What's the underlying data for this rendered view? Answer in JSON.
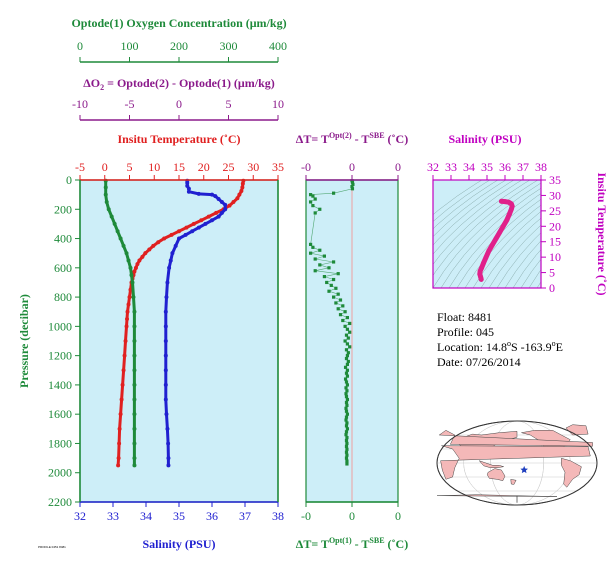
{
  "colors": {
    "oxygen": "#1e8a3a",
    "delta_o2": "#8b1a8b",
    "temperature": "#e02020",
    "salinity": "#2020d0",
    "pressure": "#1e8a3a",
    "dt": "#1e8a3a",
    "ts_salinity": "#c000c0",
    "ts_temp": "#c000c0",
    "ts_line": "#e0208a",
    "panel_bg": "#cdeef8",
    "map_land": "#f4b8b8",
    "map_ocean": "#ffffff",
    "float_marker": "#1f3fbf"
  },
  "chart_data": [
    {
      "type": "line",
      "name": "main-profile",
      "ylabel": "Pressure (decibar)",
      "y_ticks": [
        0,
        200,
        400,
        600,
        800,
        1000,
        1200,
        1400,
        1600,
        1800,
        2000,
        2200
      ],
      "ylim": [
        0,
        2200
      ],
      "x_axes": {
        "oxygen": {
          "label": "Optode(1) Oxygen Concentration (μm/kg)",
          "ticks": [
            0,
            100,
            200,
            300,
            400
          ],
          "range": [
            0,
            400
          ]
        },
        "delta_o2": {
          "label_prefix": "ΔO",
          "label_sub": "2",
          "label_rest": " = Optode(2) - Optode(1)   (μm/kg)",
          "ticks": [
            -10,
            -5,
            0,
            5,
            10
          ],
          "range": [
            -10,
            10
          ]
        },
        "temperature": {
          "label": "Insitu Temperature (˚C)",
          "ticks": [
            -5,
            0,
            5,
            10,
            15,
            20,
            25,
            30,
            35
          ],
          "range": [
            -5,
            35
          ]
        },
        "salinity": {
          "label": "Salinity (PSU)",
          "ticks": [
            32,
            33,
            34,
            35,
            36,
            37,
            38
          ],
          "range": [
            32,
            38
          ]
        }
      },
      "series": [
        {
          "name": "Temperature",
          "axis": "temperature",
          "points": [
            [
              28.0,
              5
            ],
            [
              27.9,
              25
            ],
            [
              27.8,
              50
            ],
            [
              27.6,
              75
            ],
            [
              27.2,
              100
            ],
            [
              26.8,
              125
            ],
            [
              26.0,
              150
            ],
            [
              25.2,
              175
            ],
            [
              24.0,
              200
            ],
            [
              22.5,
              225
            ],
            [
              21.0,
              250
            ],
            [
              19.5,
              275
            ],
            [
              18.0,
              300
            ],
            [
              16.5,
              325
            ],
            [
              15.0,
              350
            ],
            [
              13.5,
              375
            ],
            [
              12.0,
              400
            ],
            [
              10.8,
              425
            ],
            [
              9.8,
              450
            ],
            [
              9.0,
              475
            ],
            [
              8.2,
              500
            ],
            [
              7.6,
              525
            ],
            [
              7.0,
              550
            ],
            [
              6.6,
              575
            ],
            [
              6.3,
              600
            ],
            [
              6.0,
              625
            ],
            [
              5.8,
              650
            ],
            [
              5.6,
              675
            ],
            [
              5.4,
              700
            ],
            [
              5.2,
              750
            ],
            [
              5.0,
              800
            ],
            [
              4.8,
              850
            ],
            [
              4.6,
              900
            ],
            [
              4.5,
              950
            ],
            [
              4.4,
              1000
            ],
            [
              4.2,
              1100
            ],
            [
              4.0,
              1200
            ],
            [
              3.8,
              1300
            ],
            [
              3.6,
              1400
            ],
            [
              3.4,
              1500
            ],
            [
              3.2,
              1600
            ],
            [
              3.0,
              1700
            ],
            [
              2.9,
              1800
            ],
            [
              2.8,
              1900
            ],
            [
              2.7,
              1950
            ]
          ]
        },
        {
          "name": "Salinity",
          "axis": "salinity",
          "points": [
            [
              35.25,
              5
            ],
            [
              35.25,
              20
            ],
            [
              35.25,
              40
            ],
            [
              35.3,
              60
            ],
            [
              35.3,
              80
            ],
            [
              35.6,
              95
            ],
            [
              36.0,
              100
            ],
            [
              36.1,
              110
            ],
            [
              36.2,
              130
            ],
            [
              36.3,
              150
            ],
            [
              36.4,
              170
            ],
            [
              36.4,
              200
            ],
            [
              36.3,
              225
            ],
            [
              36.2,
              250
            ],
            [
              36.0,
              275
            ],
            [
              35.8,
              300
            ],
            [
              35.6,
              325
            ],
            [
              35.4,
              350
            ],
            [
              35.2,
              375
            ],
            [
              35.0,
              400
            ],
            [
              34.9,
              450
            ],
            [
              34.8,
              500
            ],
            [
              34.75,
              550
            ],
            [
              34.7,
              600
            ],
            [
              34.65,
              700
            ],
            [
              34.62,
              800
            ],
            [
              34.6,
              900
            ],
            [
              34.6,
              1000
            ],
            [
              34.6,
              1100
            ],
            [
              34.6,
              1200
            ],
            [
              34.6,
              1300
            ],
            [
              34.6,
              1400
            ],
            [
              34.6,
              1500
            ],
            [
              34.62,
              1600
            ],
            [
              34.65,
              1700
            ],
            [
              34.67,
              1800
            ],
            [
              34.68,
              1900
            ],
            [
              34.68,
              1950
            ]
          ]
        },
        {
          "name": "Oxygen",
          "axis": "oxygen",
          "points": [
            [
              52,
              5
            ],
            [
              52,
              50
            ],
            [
              52,
              100
            ],
            [
              54,
              150
            ],
            [
              58,
              200
            ],
            [
              64,
              250
            ],
            [
              70,
              300
            ],
            [
              76,
              350
            ],
            [
              82,
              400
            ],
            [
              88,
              450
            ],
            [
              94,
              500
            ],
            [
              98,
              550
            ],
            [
              102,
              600
            ],
            [
              104,
              650
            ],
            [
              106,
              700
            ],
            [
              108,
              800
            ],
            [
              110,
              900
            ],
            [
              110,
              1000
            ],
            [
              110,
              1100
            ],
            [
              110,
              1200
            ],
            [
              110,
              1300
            ],
            [
              110,
              1400
            ],
            [
              110,
              1500
            ],
            [
              110,
              1600
            ],
            [
              110,
              1700
            ],
            [
              110,
              1800
            ],
            [
              110,
              1900
            ],
            [
              110,
              1950
            ]
          ]
        }
      ]
    },
    {
      "type": "scatter",
      "name": "delta-t",
      "top_label_main": "ΔT= T",
      "top_label_sup1": "Opt(2)",
      "top_label_mid": " - T",
      "top_label_sup2": "SBE",
      "top_label_end": " (˚C)",
      "bottom_label_main": "ΔT= T",
      "bottom_label_sup1": "Opt(1)",
      "bottom_label_mid": " - T",
      "bottom_label_sup2": "SBE",
      "bottom_label_end": " (˚C)",
      "top_ticks": [
        "-0",
        "0",
        "0"
      ],
      "bottom_ticks": [
        "-0",
        "0",
        "0"
      ],
      "points": [
        [
          0.0,
          5
        ],
        [
          0.01,
          15
        ],
        [
          0.02,
          30
        ],
        [
          0.0,
          45
        ],
        [
          0.01,
          60
        ],
        [
          -0.4,
          90
        ],
        [
          -0.9,
          100
        ],
        [
          -0.85,
          110
        ],
        [
          -0.8,
          130
        ],
        [
          -0.9,
          150
        ],
        [
          -0.85,
          175
        ],
        [
          -0.7,
          200
        ],
        [
          -0.8,
          225
        ],
        [
          -0.9,
          440
        ],
        [
          -0.85,
          460
        ],
        [
          -0.7,
          480
        ],
        [
          -0.9,
          500
        ],
        [
          -0.6,
          520
        ],
        [
          -0.8,
          540
        ],
        [
          -0.4,
          560
        ],
        [
          -0.7,
          580
        ],
        [
          -0.5,
          600
        ],
        [
          -0.8,
          620
        ],
        [
          -0.3,
          640
        ],
        [
          -0.6,
          660
        ],
        [
          -0.4,
          680
        ],
        [
          -0.55,
          700
        ],
        [
          -0.45,
          720
        ],
        [
          -0.35,
          740
        ],
        [
          -0.5,
          760
        ],
        [
          -0.3,
          780
        ],
        [
          -0.4,
          800
        ],
        [
          -0.25,
          820
        ],
        [
          -0.35,
          840
        ],
        [
          -0.2,
          860
        ],
        [
          -0.3,
          880
        ],
        [
          -0.15,
          900
        ],
        [
          -0.25,
          920
        ],
        [
          -0.1,
          940
        ],
        [
          -0.2,
          960
        ],
        [
          -0.05,
          980
        ],
        [
          -0.15,
          1000
        ],
        [
          -0.1,
          1020
        ],
        [
          -0.05,
          1040
        ],
        [
          -0.12,
          1060
        ],
        [
          -0.08,
          1080
        ],
        [
          -0.15,
          1100
        ],
        [
          -0.1,
          1120
        ],
        [
          -0.05,
          1140
        ],
        [
          -0.12,
          1160
        ],
        [
          -0.08,
          1180
        ],
        [
          -0.1,
          1200
        ],
        [
          -0.12,
          1220
        ],
        [
          -0.08,
          1240
        ],
        [
          -0.1,
          1260
        ],
        [
          -0.14,
          1280
        ],
        [
          -0.1,
          1300
        ],
        [
          -0.12,
          1320
        ],
        [
          -0.1,
          1340
        ],
        [
          -0.14,
          1360
        ],
        [
          -0.12,
          1380
        ],
        [
          -0.1,
          1400
        ],
        [
          -0.13,
          1420
        ],
        [
          -0.11,
          1440
        ],
        [
          -0.13,
          1460
        ],
        [
          -0.12,
          1480
        ],
        [
          -0.1,
          1500
        ],
        [
          -0.12,
          1520
        ],
        [
          -0.11,
          1540
        ],
        [
          -0.13,
          1560
        ],
        [
          -0.12,
          1580
        ],
        [
          -0.1,
          1600
        ],
        [
          -0.12,
          1620
        ],
        [
          -0.13,
          1640
        ],
        [
          -0.11,
          1660
        ],
        [
          -0.12,
          1680
        ],
        [
          -0.1,
          1700
        ],
        [
          -0.12,
          1720
        ],
        [
          -0.13,
          1740
        ],
        [
          -0.11,
          1760
        ],
        [
          -0.12,
          1780
        ],
        [
          -0.11,
          1800
        ],
        [
          -0.12,
          1820
        ],
        [
          -0.11,
          1840
        ],
        [
          -0.12,
          1860
        ],
        [
          -0.11,
          1880
        ],
        [
          -0.12,
          1900
        ],
        [
          -0.11,
          1920
        ],
        [
          -0.11,
          1940
        ]
      ],
      "xlim": [
        -1,
        1
      ]
    },
    {
      "type": "line",
      "name": "ts-diagram",
      "xlabel": "Salinity (PSU)",
      "ylabel": "Insitu Temperature (˚C)",
      "x_ticks": [
        32,
        33,
        34,
        35,
        36,
        37,
        38
      ],
      "y_ticks": [
        0,
        5,
        10,
        15,
        20,
        25,
        30,
        35
      ],
      "xlim": [
        32,
        38
      ],
      "ylim": [
        0,
        35
      ],
      "points": [
        [
          34.68,
          2.8
        ],
        [
          34.65,
          3.5
        ],
        [
          34.6,
          4.5
        ],
        [
          34.62,
          5.5
        ],
        [
          34.7,
          6.5
        ],
        [
          34.8,
          8
        ],
        [
          34.95,
          10
        ],
        [
          35.1,
          12
        ],
        [
          35.3,
          14
        ],
        [
          35.5,
          16
        ],
        [
          35.7,
          18
        ],
        [
          35.9,
          20
        ],
        [
          36.1,
          22
        ],
        [
          36.25,
          24
        ],
        [
          36.35,
          25.5
        ],
        [
          36.4,
          26.5
        ],
        [
          36.35,
          27.3
        ],
        [
          36.2,
          27.8
        ],
        [
          36.0,
          28
        ],
        [
          35.8,
          28.1
        ]
      ]
    }
  ],
  "info": {
    "float": "Float:  8481",
    "profile": "Profile:  045",
    "location_prefix": "Location:  14.8",
    "location_s": "S  -163.9",
    "location_e": "E",
    "date": "Date:  07/26/2014"
  },
  "map": {
    "float_position": {
      "lon": -163.9,
      "lat": -14.8
    }
  },
  "footer_tag": "PROFILE 0451 8481"
}
